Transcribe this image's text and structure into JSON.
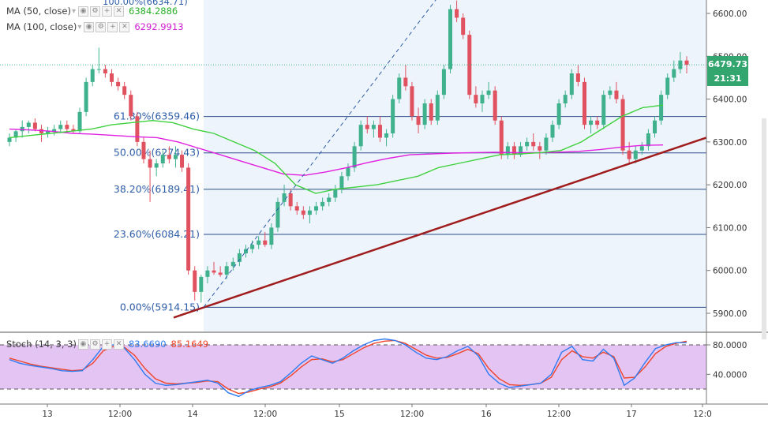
{
  "legend": {
    "ma50_label": "MA (50, close)",
    "ma50_value": "6384.2886",
    "ma100_label": "MA (100, close)",
    "ma100_value": "6292.9913",
    "stoch_label": "Stoch (14, 3, 3)",
    "stoch_k": "83.6690",
    "stoch_d": "85.1649",
    "top_clipped": "100.00%(6634.71)"
  },
  "price_tag": {
    "value": "6479.73",
    "countdown": "21:31"
  },
  "colors": {
    "up": "#3fb28d",
    "down": "#e0525f",
    "ma50": "#3fd13f",
    "ma100": "#e020e0",
    "fib_line": "#2a4e86",
    "fib_text": "#2f5ea8",
    "trend": "#a01d1d",
    "stoch_k": "#2f7bf2",
    "stoch_d": "#f0452a",
    "stoch_band": "#e3c4f3",
    "price_tag": "#33a56e",
    "highlight": "#eef4fc"
  },
  "chart_data": {
    "type": "candlestick",
    "y_axis": {
      "min": 5880,
      "max": 6660,
      "ticks": [
        5900,
        6000,
        6100,
        6200,
        6300,
        6400,
        6500,
        6600
      ],
      "labels": [
        "5900.00",
        "6000.00",
        "6100.00",
        "6200.00",
        "6300.00",
        "6400.00",
        "6500.00",
        "6600.00"
      ]
    },
    "x_axis": {
      "labels": [
        "13",
        "12:00",
        "14",
        "12:00",
        "15",
        "12:00",
        "16",
        "12:00",
        "17",
        "12:0"
      ]
    },
    "candles": [
      [
        6300,
        6320,
        6290,
        6310
      ],
      [
        6310,
        6330,
        6300,
        6325
      ],
      [
        6325,
        6350,
        6310,
        6335
      ],
      [
        6335,
        6350,
        6320,
        6345
      ],
      [
        6345,
        6355,
        6325,
        6330
      ],
      [
        6330,
        6340,
        6300,
        6320
      ],
      [
        6320,
        6335,
        6310,
        6325
      ],
      [
        6325,
        6340,
        6315,
        6330
      ],
      [
        6330,
        6350,
        6320,
        6340
      ],
      [
        6340,
        6350,
        6325,
        6330
      ],
      [
        6330,
        6340,
        6320,
        6325
      ],
      [
        6325,
        6380,
        6320,
        6370
      ],
      [
        6370,
        6450,
        6360,
        6440
      ],
      [
        6440,
        6480,
        6430,
        6470
      ],
      [
        6470,
        6520,
        6460,
        6470
      ],
      [
        6470,
        6480,
        6450,
        6460
      ],
      [
        6460,
        6470,
        6430,
        6440
      ],
      [
        6440,
        6450,
        6420,
        6430
      ],
      [
        6430,
        6440,
        6400,
        6410
      ],
      [
        6410,
        6420,
        6350,
        6360
      ],
      [
        6360,
        6370,
        6290,
        6300
      ],
      [
        6300,
        6310,
        6250,
        6260
      ],
      [
        6260,
        6280,
        6160,
        6240
      ],
      [
        6240,
        6260,
        6220,
        6250
      ],
      [
        6250,
        6280,
        6240,
        6270
      ],
      [
        6270,
        6290,
        6250,
        6260
      ],
      [
        6260,
        6290,
        6240,
        6270
      ],
      [
        6270,
        6280,
        6230,
        6240
      ],
      [
        6240,
        6250,
        5990,
        6000
      ],
      [
        6000,
        6010,
        5930,
        5950
      ],
      [
        5950,
        5990,
        5925,
        5985
      ],
      [
        5985,
        6010,
        5970,
        6000
      ],
      [
        6000,
        6020,
        5990,
        5995
      ],
      [
        5995,
        6010,
        5985,
        5990
      ],
      [
        5990,
        6020,
        5980,
        6010
      ],
      [
        6010,
        6030,
        6000,
        6020
      ],
      [
        6020,
        6050,
        6010,
        6040
      ],
      [
        6040,
        6060,
        6030,
        6050
      ],
      [
        6050,
        6070,
        6040,
        6060
      ],
      [
        6060,
        6080,
        6050,
        6070
      ],
      [
        6070,
        6090,
        6055,
        6060
      ],
      [
        6060,
        6110,
        6050,
        6100
      ],
      [
        6100,
        6170,
        6090,
        6160
      ],
      [
        6160,
        6200,
        6150,
        6180
      ],
      [
        6180,
        6190,
        6140,
        6150
      ],
      [
        6150,
        6160,
        6130,
        6140
      ],
      [
        6140,
        6150,
        6120,
        6130
      ],
      [
        6130,
        6150,
        6110,
        6140
      ],
      [
        6140,
        6160,
        6130,
        6150
      ],
      [
        6150,
        6170,
        6140,
        6160
      ],
      [
        6160,
        6180,
        6150,
        6170
      ],
      [
        6170,
        6200,
        6160,
        6190
      ],
      [
        6190,
        6230,
        6180,
        6220
      ],
      [
        6220,
        6250,
        6210,
        6240
      ],
      [
        6240,
        6300,
        6230,
        6290
      ],
      [
        6290,
        6350,
        6280,
        6340
      ],
      [
        6340,
        6360,
        6320,
        6330
      ],
      [
        6330,
        6350,
        6310,
        6340
      ],
      [
        6340,
        6360,
        6300,
        6310
      ],
      [
        6310,
        6330,
        6290,
        6320
      ],
      [
        6320,
        6410,
        6310,
        6400
      ],
      [
        6400,
        6460,
        6390,
        6450
      ],
      [
        6450,
        6480,
        6420,
        6430
      ],
      [
        6430,
        6440,
        6350,
        6360
      ],
      [
        6360,
        6380,
        6320,
        6340
      ],
      [
        6340,
        6400,
        6330,
        6390
      ],
      [
        6390,
        6400,
        6340,
        6350
      ],
      [
        6350,
        6420,
        6340,
        6410
      ],
      [
        6410,
        6480,
        6400,
        6470
      ],
      [
        6470,
        6620,
        6460,
        6610
      ],
      [
        6610,
        6630,
        6580,
        6590
      ],
      [
        6590,
        6600,
        6540,
        6550
      ],
      [
        6550,
        6560,
        6400,
        6410
      ],
      [
        6410,
        6430,
        6380,
        6390
      ],
      [
        6390,
        6420,
        6370,
        6410
      ],
      [
        6410,
        6440,
        6400,
        6420
      ],
      [
        6420,
        6430,
        6340,
        6350
      ],
      [
        6350,
        6360,
        6260,
        6270
      ],
      [
        6270,
        6300,
        6260,
        6290
      ],
      [
        6290,
        6300,
        6260,
        6270
      ],
      [
        6270,
        6300,
        6265,
        6290
      ],
      [
        6290,
        6310,
        6280,
        6300
      ],
      [
        6300,
        6320,
        6280,
        6290
      ],
      [
        6290,
        6300,
        6260,
        6280
      ],
      [
        6280,
        6320,
        6270,
        6310
      ],
      [
        6310,
        6350,
        6300,
        6340
      ],
      [
        6340,
        6400,
        6330,
        6390
      ],
      [
        6390,
        6420,
        6380,
        6410
      ],
      [
        6410,
        6470,
        6400,
        6460
      ],
      [
        6460,
        6480,
        6430,
        6440
      ],
      [
        6440,
        6450,
        6330,
        6340
      ],
      [
        6340,
        6360,
        6320,
        6350
      ],
      [
        6350,
        6360,
        6330,
        6340
      ],
      [
        6340,
        6420,
        6330,
        6410
      ],
      [
        6410,
        6430,
        6400,
        6420
      ],
      [
        6420,
        6440,
        6390,
        6400
      ],
      [
        6400,
        6410,
        6270,
        6280
      ],
      [
        6280,
        6300,
        6250,
        6260
      ],
      [
        6260,
        6290,
        6250,
        6280
      ],
      [
        6280,
        6300,
        6270,
        6290
      ],
      [
        6290,
        6330,
        6280,
        6320
      ],
      [
        6320,
        6360,
        6310,
        6350
      ],
      [
        6350,
        6420,
        6340,
        6410
      ],
      [
        6410,
        6460,
        6400,
        6450
      ],
      [
        6450,
        6490,
        6440,
        6470
      ],
      [
        6470,
        6510,
        6460,
        6490
      ],
      [
        6490,
        6500,
        6460,
        6480
      ]
    ],
    "ma50": [
      6310,
      6315,
      6320,
      6325,
      6330,
      6340,
      6345,
      6350,
      6345,
      6330,
      6320,
      6300,
      6280,
      6250,
      6200,
      6180,
      6190,
      6195,
      6200,
      6210,
      6220,
      6240,
      6250,
      6260,
      6270,
      6272,
      6275,
      6280,
      6300,
      6330,
      6360,
      6380,
      6386
    ],
    "ma100": [
      6330,
      6328,
      6325,
      6320,
      6318,
      6315,
      6312,
      6310,
      6300,
      6285,
      6270,
      6255,
      6240,
      6225,
      6222,
      6230,
      6240,
      6252,
      6262,
      6270,
      6272,
      6274,
      6275,
      6276,
      6275,
      6275,
      6276,
      6278,
      6282,
      6288,
      6292,
      6293
    ],
    "fib_levels": [
      {
        "label": "61.80%(6359.46)",
        "value": 6359.46
      },
      {
        "label": "50.00%(6274.43)",
        "value": 6274.43
      },
      {
        "label": "38.20%(6189.41)",
        "value": 6189.41
      },
      {
        "label": "23.60%(6084.21)",
        "value": 6084.21
      },
      {
        "label": "0.00%(5914.15)",
        "value": 5914.15
      }
    ],
    "trendline": [
      [
        0,
        5890
      ],
      [
        1,
        6310
      ]
    ],
    "stoch": {
      "y_ticks": [
        40,
        80
      ],
      "labels": [
        "40.0000",
        "80.0000"
      ],
      "upper": 80,
      "lower": 20,
      "k": [
        60,
        55,
        52,
        50,
        48,
        45,
        44,
        45,
        60,
        78,
        80,
        76,
        60,
        40,
        28,
        25,
        26,
        28,
        30,
        32,
        28,
        15,
        10,
        18,
        22,
        25,
        30,
        42,
        55,
        65,
        60,
        55,
        62,
        72,
        80,
        86,
        88,
        86,
        80,
        70,
        62,
        60,
        64,
        72,
        78,
        65,
        40,
        28,
        22,
        24,
        26,
        28,
        40,
        70,
        78,
        60,
        58,
        74,
        62,
        25,
        35,
        56,
        75,
        80,
        83,
        83
      ],
      "d": [
        62,
        58,
        54,
        51,
        49,
        47,
        45,
        46,
        55,
        72,
        78,
        77,
        66,
        48,
        34,
        28,
        27,
        28,
        29,
        31,
        30,
        20,
        14,
        16,
        20,
        23,
        28,
        38,
        50,
        60,
        61,
        57,
        60,
        68,
        76,
        82,
        85,
        86,
        82,
        74,
        66,
        62,
        63,
        68,
        74,
        68,
        48,
        34,
        26,
        25,
        26,
        28,
        36,
        60,
        72,
        64,
        62,
        70,
        64,
        35,
        36,
        50,
        68,
        78,
        82,
        85
      ]
    }
  }
}
